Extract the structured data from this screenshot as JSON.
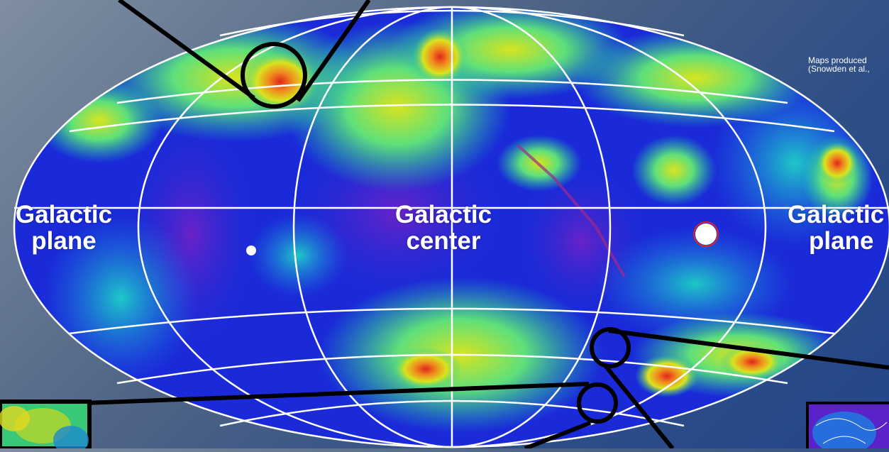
{
  "labels": {
    "left_plane": [
      "Galactic",
      "plane"
    ],
    "center": [
      "Galactic",
      "center"
    ],
    "right_plane": [
      "Galactic",
      "plane"
    ]
  },
  "credit": {
    "line1": "Maps produced",
    "line2": "(Snowden et al.,"
  },
  "colors": {
    "background": "#2f4f86",
    "map_low": "#1a1ad6",
    "map_mid": "#1ec8a8",
    "map_high": "#d8e41e",
    "map_peak": "#e0261a",
    "grid": "#ffffff",
    "callout": "#000000"
  },
  "map": {
    "projection": "Aitoff/Hammer all-sky ellipse",
    "grid": true,
    "callout_circles": 3,
    "inset_panels": 2
  }
}
